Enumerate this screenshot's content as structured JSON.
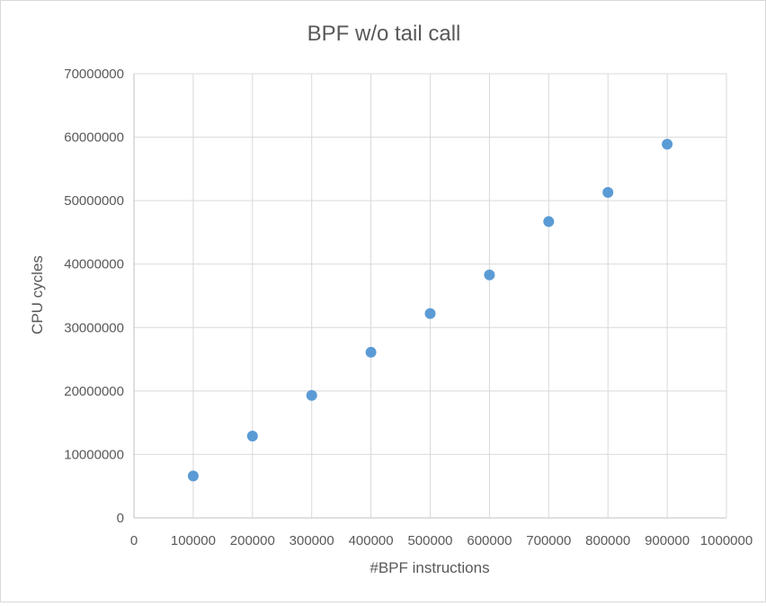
{
  "chart_data": {
    "type": "scatter",
    "title": "BPF w/o tail call",
    "xlabel": "#BPF instructions",
    "ylabel": "CPU cycles",
    "xlim": [
      0,
      1000000
    ],
    "ylim": [
      0,
      70000000
    ],
    "x_ticks": [
      0,
      100000,
      200000,
      300000,
      400000,
      500000,
      600000,
      700000,
      800000,
      900000,
      1000000
    ],
    "y_ticks": [
      0,
      10000000,
      20000000,
      30000000,
      40000000,
      50000000,
      60000000,
      70000000
    ],
    "x_tick_labels": [
      "0",
      "100000",
      "200000",
      "300000",
      "400000",
      "500000",
      "600000",
      "700000",
      "800000",
      "900000",
      "1000000"
    ],
    "y_tick_labels": [
      "0",
      "10000000",
      "20000000",
      "30000000",
      "40000000",
      "50000000",
      "60000000",
      "70000000"
    ],
    "grid": true,
    "legend": false,
    "marker_color": "#5b9bd5",
    "series": [
      {
        "x": [
          100000,
          200000,
          300000,
          400000,
          500000,
          600000,
          700000,
          800000,
          900000
        ],
        "y": [
          6600000,
          12900000,
          19300000,
          26100000,
          32200000,
          38300000,
          46700000,
          51300000,
          58900000
        ]
      }
    ]
  }
}
